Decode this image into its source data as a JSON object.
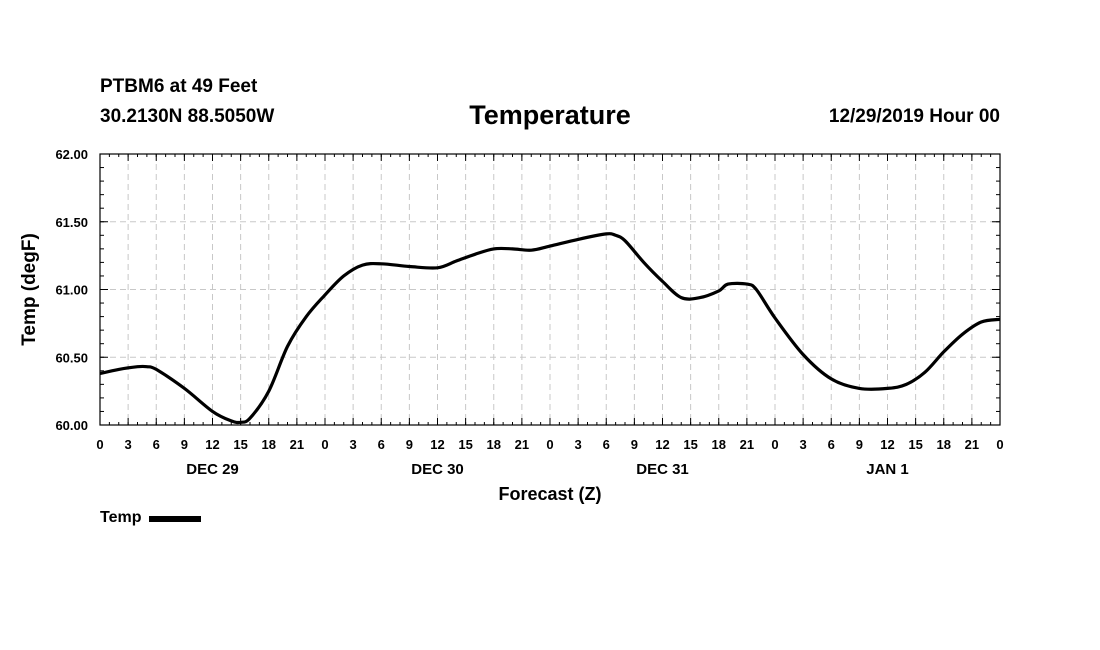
{
  "header": {
    "station": "PTBM6 at 49 Feet",
    "coords": "30.2130N 88.5050W",
    "run_time": "12/29/2019 Hour 00"
  },
  "chart_data": {
    "type": "line",
    "title": "Temperature",
    "xlabel": "Forecast (Z)",
    "ylabel": "Temp (degF)",
    "ylim": [
      60.0,
      62.0
    ],
    "yticks": [
      "60.00",
      "60.50",
      "61.00",
      "61.50",
      "62.00"
    ],
    "xlim": [
      0,
      96
    ],
    "x_tick_labels": [
      "0",
      "3",
      "6",
      "9",
      "12",
      "15",
      "18",
      "21",
      "0",
      "3",
      "6",
      "9",
      "12",
      "15",
      "18",
      "21",
      "0",
      "3",
      "6",
      "9",
      "12",
      "15",
      "18",
      "21",
      "0",
      "3",
      "6",
      "9",
      "12",
      "15",
      "18",
      "21",
      "0"
    ],
    "day_labels": [
      {
        "label": "DEC 29",
        "hour": 12
      },
      {
        "label": "DEC 30",
        "hour": 36
      },
      {
        "label": "DEC 31",
        "hour": 60
      },
      {
        "label": "JAN 1",
        "hour": 84
      }
    ],
    "grid": true,
    "legend_position": "bottom-left",
    "series": [
      {
        "name": "Temp",
        "color": "#000000",
        "x": [
          0,
          2,
          4,
          5,
          6,
          9,
          12,
          14,
          15,
          16,
          18,
          20,
          22,
          24,
          26,
          28,
          30,
          33,
          36,
          38,
          40,
          42,
          44,
          46,
          48,
          51,
          54,
          55,
          56,
          58,
          60,
          62,
          64,
          66,
          67,
          69,
          70,
          72,
          75,
          78,
          81,
          84,
          86,
          88,
          90,
          92,
          94,
          96
        ],
        "values": [
          60.38,
          60.41,
          60.43,
          60.43,
          60.41,
          60.27,
          60.1,
          60.03,
          60.02,
          60.05,
          60.25,
          60.58,
          60.8,
          60.96,
          61.1,
          61.18,
          61.19,
          61.17,
          61.16,
          61.21,
          61.26,
          61.3,
          61.3,
          61.29,
          61.32,
          61.37,
          61.41,
          61.4,
          61.36,
          61.2,
          61.06,
          60.94,
          60.94,
          60.99,
          61.04,
          61.04,
          61.0,
          60.79,
          60.52,
          60.34,
          60.27,
          60.27,
          60.3,
          60.39,
          60.54,
          60.67,
          60.76,
          60.78
        ]
      }
    ]
  },
  "legend": {
    "label": "Temp"
  }
}
